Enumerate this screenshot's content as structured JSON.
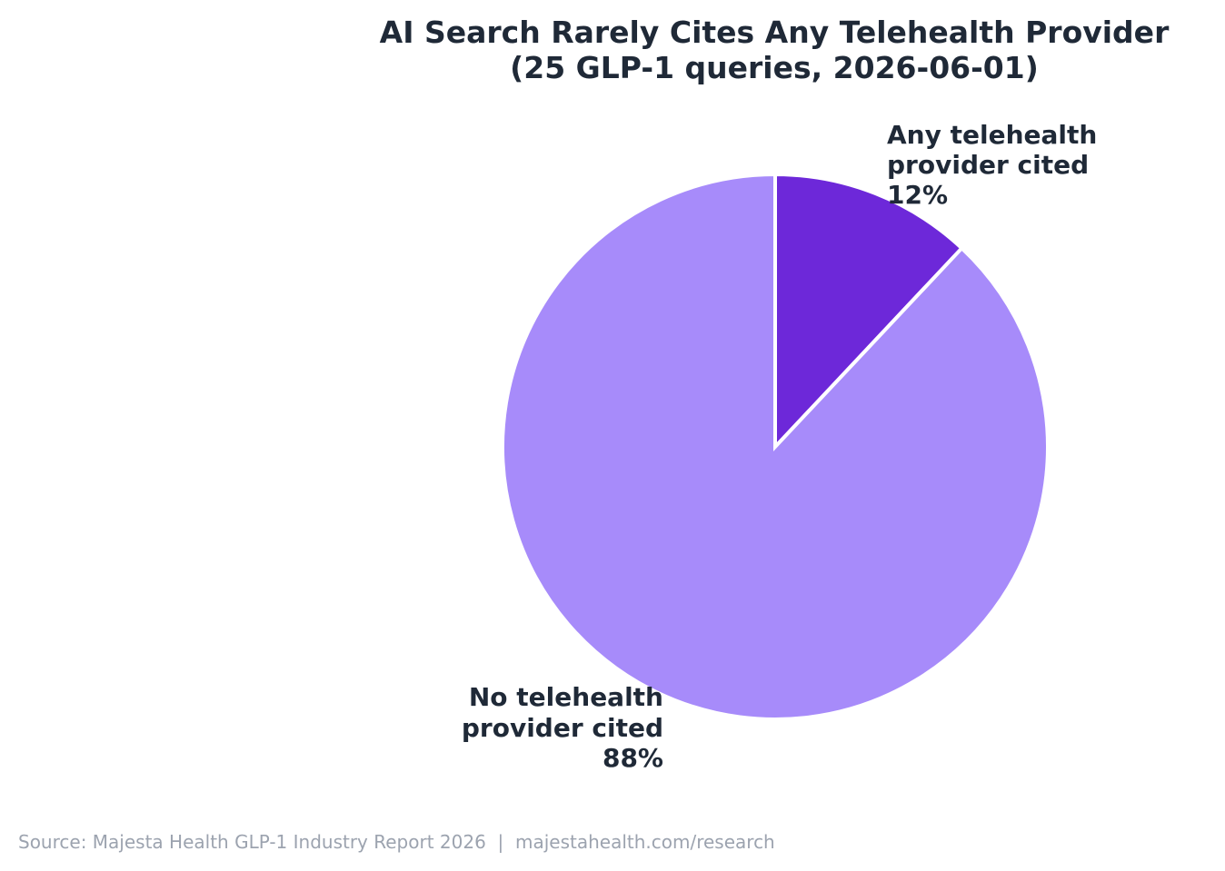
{
  "chart_data": {
    "type": "pie",
    "title_lines": [
      "AI Search Rarely Cites Any Telehealth Provider",
      "(25 GLP-1 queries, 2026-06-01)"
    ],
    "slices": [
      {
        "label_lines": [
          "Any telehealth",
          "provider cited"
        ],
        "percent_label": "12%",
        "value": 12,
        "color": "#6d28d9"
      },
      {
        "label_lines": [
          "No telehealth",
          "provider cited"
        ],
        "percent_label": "88%",
        "value": 88,
        "color": "#a78bfa"
      }
    ],
    "start_angle": "12 o'clock",
    "direction": "clockwise",
    "slice_border_color": "#ffffff"
  },
  "footer": {
    "source": "Source: Majesta Health GLP-1 Industry Report 2026  |  majestahealth.com/research"
  }
}
